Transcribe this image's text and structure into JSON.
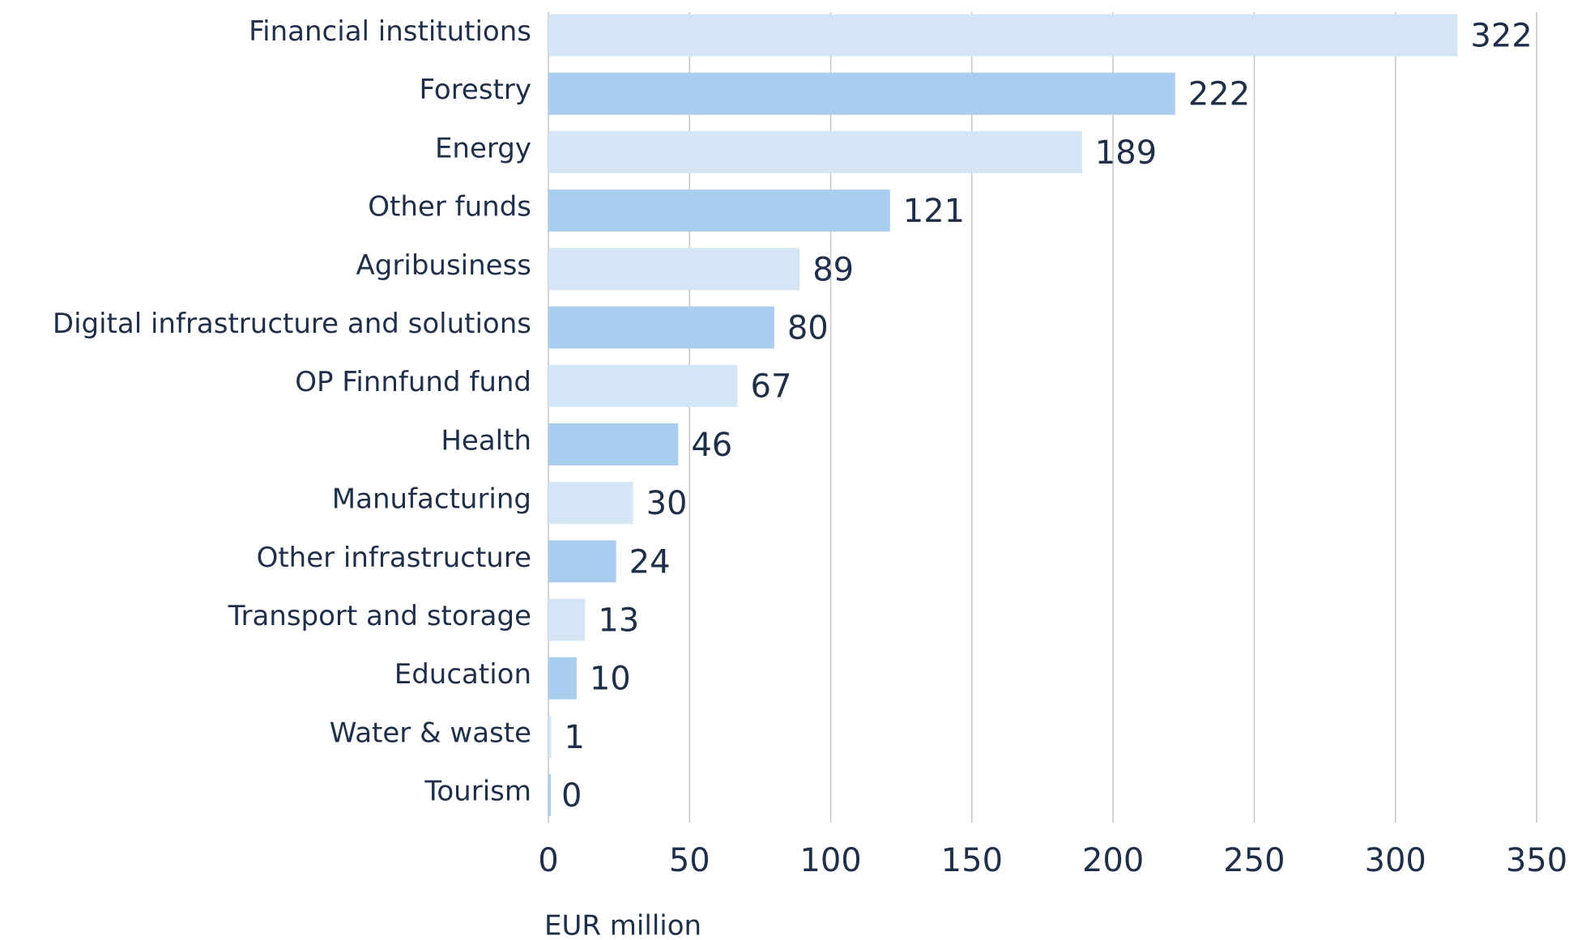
{
  "chart_data": {
    "type": "barh",
    "categories": [
      "Financial institutions",
      "Forestry",
      "Energy",
      "Other funds",
      "Agribusiness",
      "Digital  infrastructure  and solutions",
      "OP Finnfund fund",
      "Health",
      "Manufacturing",
      "Other infrastructure",
      "Transport and storage",
      "Education",
      "Water & waste",
      "Tourism"
    ],
    "values": [
      322,
      222,
      189,
      121,
      89,
      80,
      67,
      46,
      30,
      24,
      13,
      10,
      1,
      0
    ],
    "colors": [
      "#d4e5f5",
      "#a9cdee",
      "#d4e5f5",
      "#a9cdee",
      "#d4e5f5",
      "#a9cdee",
      "#d4e5f5",
      "#a9cdee",
      "#d4e5f5",
      "#a9cdee",
      "#d4e5f5",
      "#a9cdee",
      "#d4e5f5",
      "#a9cdee"
    ],
    "xlabel": "EUR million",
    "xlim": [
      0,
      350
    ],
    "xticks": [
      0,
      50,
      100,
      150,
      200,
      250,
      300,
      350
    ],
    "grid": true
  }
}
